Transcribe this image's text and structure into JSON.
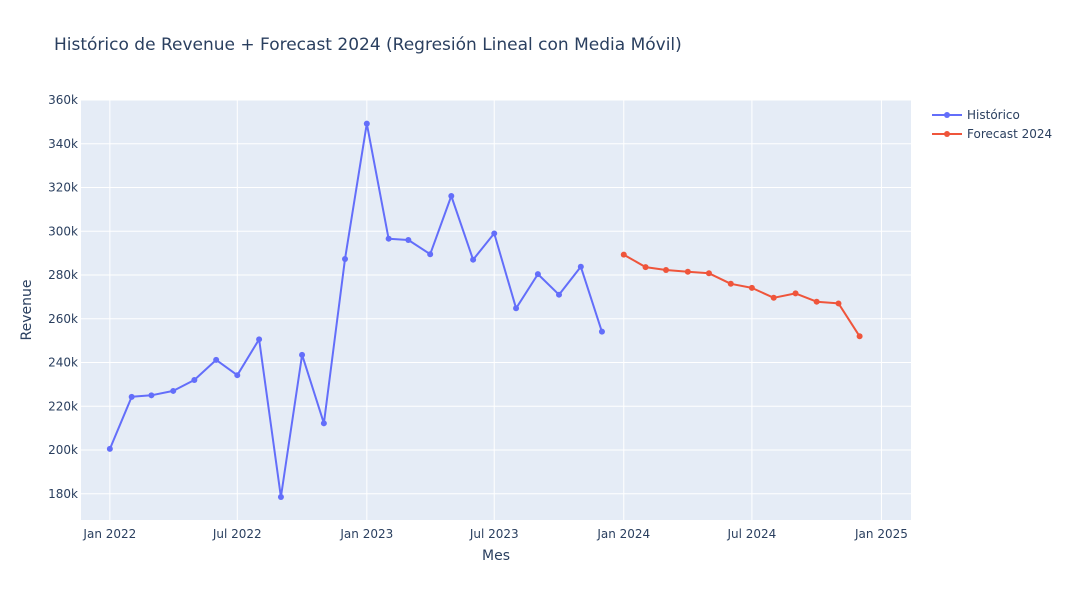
{
  "chart_data": {
    "type": "line",
    "title": "Histórico de Revenue + Forecast 2024 (Regresión Lineal con Media Móvil)",
    "xlabel": "Mes",
    "ylabel": "Revenue",
    "x_range": [
      "2021-11-21",
      "2025-02-12"
    ],
    "ylim": [
      168000,
      360000
    ],
    "x_ticks": [
      {
        "date": "2022-01-01",
        "label": "Jan 2022"
      },
      {
        "date": "2022-07-01",
        "label": "Jul 2022"
      },
      {
        "date": "2023-01-01",
        "label": "Jan 2023"
      },
      {
        "date": "2023-07-01",
        "label": "Jul 2023"
      },
      {
        "date": "2024-01-01",
        "label": "Jan 2024"
      },
      {
        "date": "2024-07-01",
        "label": "Jul 2024"
      },
      {
        "date": "2025-01-01",
        "label": "Jan 2025"
      }
    ],
    "y_ticks": [
      {
        "value": 180000,
        "label": "180k"
      },
      {
        "value": 200000,
        "label": "200k"
      },
      {
        "value": 220000,
        "label": "220k"
      },
      {
        "value": 240000,
        "label": "240k"
      },
      {
        "value": 260000,
        "label": "260k"
      },
      {
        "value": 280000,
        "label": "280k"
      },
      {
        "value": 300000,
        "label": "300k"
      },
      {
        "value": 320000,
        "label": "320k"
      },
      {
        "value": 340000,
        "label": "340k"
      },
      {
        "value": 360000,
        "label": "360k"
      }
    ],
    "grid": true,
    "legend_position": "top-right",
    "series": [
      {
        "name": "Histórico",
        "color": "#636efa",
        "x": [
          "2022-01-01",
          "2022-02-01",
          "2022-03-01",
          "2022-04-01",
          "2022-05-01",
          "2022-06-01",
          "2022-07-01",
          "2022-08-01",
          "2022-09-01",
          "2022-10-01",
          "2022-11-01",
          "2022-12-01",
          "2023-01-01",
          "2023-02-01",
          "2023-03-01",
          "2023-04-01",
          "2023-05-01",
          "2023-06-01",
          "2023-07-01",
          "2023-08-01",
          "2023-09-01",
          "2023-10-01",
          "2023-11-01",
          "2023-12-01"
        ],
        "y": [
          200500,
          224300,
          225000,
          227000,
          232000,
          241200,
          234200,
          250600,
          178500,
          243500,
          212200,
          287300,
          349200,
          296600,
          296000,
          289500,
          316100,
          287000,
          299000,
          264800,
          280400,
          271000,
          283800,
          254100
        ]
      },
      {
        "name": "Forecast 2024",
        "color": "#ef553b",
        "x": [
          "2024-01-01",
          "2024-02-01",
          "2024-03-01",
          "2024-04-01",
          "2024-05-01",
          "2024-06-01",
          "2024-07-01",
          "2024-08-01",
          "2024-09-01",
          "2024-10-01",
          "2024-11-01",
          "2024-12-01"
        ],
        "y": [
          289300,
          283600,
          282300,
          281500,
          280800,
          276000,
          274100,
          269600,
          271600,
          267800,
          267000,
          252000
        ]
      }
    ]
  },
  "colors": {
    "plot_bg": "#e5ecf6",
    "grid": "#ffffff",
    "text": "#2a3f5f"
  }
}
